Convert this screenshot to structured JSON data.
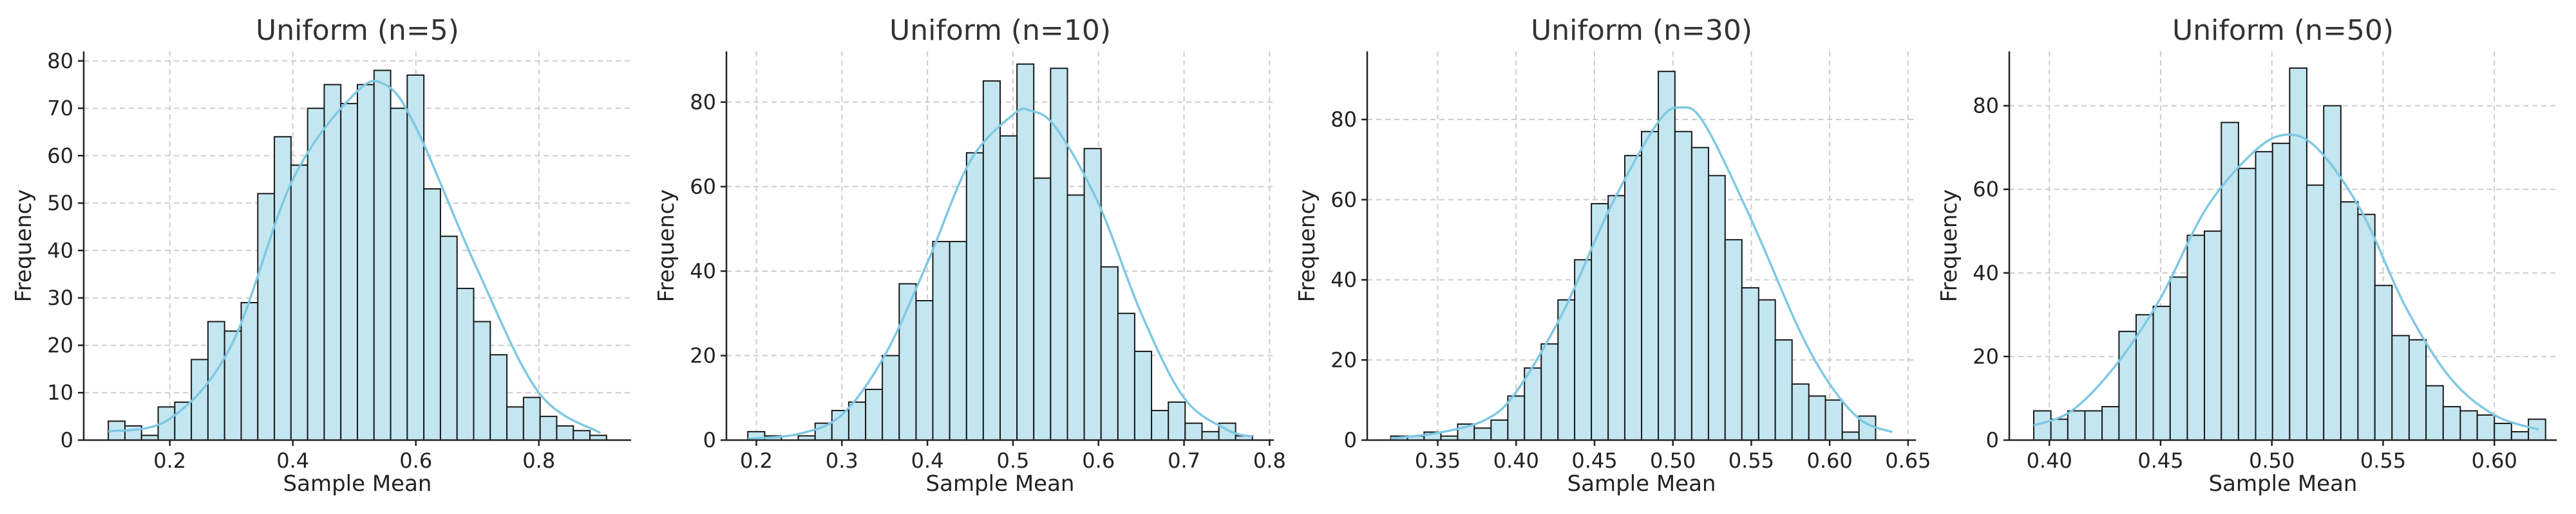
{
  "figure": {
    "bar_fill": "#c3e6f0",
    "bar_edge": "#1a1a1a",
    "kde_color": "#7ec8e3",
    "grid": true
  },
  "chart_data": [
    {
      "type": "bar",
      "title": "Uniform (n=5)",
      "xlabel": "Sample Mean",
      "ylabel": "Frequency",
      "xlim": [
        0.06,
        0.95
      ],
      "ylim": [
        0,
        82
      ],
      "xticks": [
        0.2,
        0.4,
        0.6,
        0.8
      ],
      "xtick_labels": [
        "0.2",
        "0.4",
        "0.6",
        "0.8"
      ],
      "yticks": [
        0,
        10,
        20,
        30,
        40,
        50,
        60,
        70,
        80
      ],
      "ytick_labels": [
        "0",
        "10",
        "20",
        "30",
        "40",
        "50",
        "60",
        "70",
        "80"
      ],
      "bin_edges": [
        0.1,
        0.127,
        0.154,
        0.181,
        0.208,
        0.235,
        0.262,
        0.289,
        0.316,
        0.343,
        0.37,
        0.397,
        0.424,
        0.451,
        0.478,
        0.505,
        0.532,
        0.559,
        0.586,
        0.613,
        0.64,
        0.667,
        0.694,
        0.721,
        0.748,
        0.775,
        0.802,
        0.829,
        0.856,
        0.883,
        0.91
      ],
      "values": [
        4,
        3,
        1,
        7,
        8,
        17,
        25,
        23,
        29,
        52,
        64,
        58,
        70,
        75,
        71,
        75,
        78,
        70,
        77,
        53,
        43,
        32,
        25,
        18,
        7,
        9,
        5,
        3,
        2,
        1
      ],
      "kde": [
        [
          0.1,
          1.8
        ],
        [
          0.2,
          4.5
        ],
        [
          0.3,
          20
        ],
        [
          0.4,
          55
        ],
        [
          0.5,
          73
        ],
        [
          0.55,
          75
        ],
        [
          0.6,
          66
        ],
        [
          0.7,
          36
        ],
        [
          0.8,
          10
        ],
        [
          0.9,
          1.5
        ]
      ]
    },
    {
      "type": "bar",
      "title": "Uniform (n=10)",
      "xlabel": "Sample Mean",
      "ylabel": "Frequency",
      "xlim": [
        0.165,
        0.805
      ],
      "ylim": [
        0,
        92
      ],
      "xticks": [
        0.2,
        0.3,
        0.4,
        0.5,
        0.6,
        0.7,
        0.8
      ],
      "xtick_labels": [
        "0.2",
        "0.3",
        "0.4",
        "0.5",
        "0.6",
        "0.7",
        "0.8"
      ],
      "yticks": [
        0,
        20,
        40,
        60,
        80
      ],
      "ytick_labels": [
        "0",
        "20",
        "40",
        "60",
        "80"
      ],
      "bin_edges": [
        0.19,
        0.2097,
        0.2293,
        0.249,
        0.2687,
        0.2883,
        0.308,
        0.3277,
        0.3473,
        0.367,
        0.3867,
        0.4063,
        0.426,
        0.4457,
        0.4653,
        0.485,
        0.5047,
        0.5243,
        0.544,
        0.5637,
        0.5833,
        0.603,
        0.6227,
        0.6423,
        0.662,
        0.6817,
        0.7013,
        0.721,
        0.7407,
        0.7603,
        0.78
      ],
      "values": [
        2,
        1,
        0,
        1,
        4,
        7,
        9,
        12,
        20,
        37,
        33,
        47,
        47,
        68,
        85,
        72,
        89,
        62,
        88,
        58,
        69,
        41,
        30,
        21,
        7,
        9,
        4,
        2,
        4,
        1
      ],
      "kde": [
        [
          0.19,
          0.3
        ],
        [
          0.25,
          1.5
        ],
        [
          0.3,
          6
        ],
        [
          0.35,
          20
        ],
        [
          0.4,
          42
        ],
        [
          0.45,
          66
        ],
        [
          0.5,
          77
        ],
        [
          0.52,
          78
        ],
        [
          0.55,
          74
        ],
        [
          0.6,
          56
        ],
        [
          0.65,
          30
        ],
        [
          0.7,
          10
        ],
        [
          0.75,
          2.5
        ],
        [
          0.78,
          0.8
        ]
      ]
    },
    {
      "type": "bar",
      "title": "Uniform (n=30)",
      "xlabel": "Sample Mean",
      "ylabel": "Frequency",
      "xlim": [
        0.305,
        0.655
      ],
      "ylim": [
        0,
        97
      ],
      "xticks": [
        0.35,
        0.4,
        0.45,
        0.5,
        0.55,
        0.6,
        0.65
      ],
      "xtick_labels": [
        "0.35",
        "0.40",
        "0.45",
        "0.50",
        "0.55",
        "0.60",
        "0.65"
      ],
      "yticks": [
        0,
        20,
        40,
        60,
        80
      ],
      "ytick_labels": [
        "0",
        "20",
        "40",
        "60",
        "80"
      ],
      "bin_edges": [
        0.32,
        0.3307,
        0.3413,
        0.352,
        0.3627,
        0.3733,
        0.384,
        0.3947,
        0.4053,
        0.416,
        0.4267,
        0.4373,
        0.448,
        0.4587,
        0.4693,
        0.48,
        0.4907,
        0.5013,
        0.512,
        0.5227,
        0.5333,
        0.544,
        0.5547,
        0.5653,
        0.576,
        0.5867,
        0.5973,
        0.608,
        0.6187,
        0.6293,
        0.64
      ],
      "values": [
        1,
        1,
        2,
        1,
        4,
        3,
        5,
        11,
        18,
        24,
        35,
        45,
        59,
        61,
        71,
        77,
        92,
        77,
        73,
        66,
        50,
        38,
        35,
        25,
        14,
        11,
        10,
        2,
        6,
        0
      ],
      "kde": [
        [
          0.32,
          0.4
        ],
        [
          0.35,
          1.8
        ],
        [
          0.38,
          5
        ],
        [
          0.4,
          12
        ],
        [
          0.43,
          32
        ],
        [
          0.46,
          58
        ],
        [
          0.49,
          79
        ],
        [
          0.505,
          83
        ],
        [
          0.52,
          79
        ],
        [
          0.55,
          55
        ],
        [
          0.58,
          28
        ],
        [
          0.6,
          14
        ],
        [
          0.62,
          5
        ],
        [
          0.64,
          2
        ]
      ]
    },
    {
      "type": "bar",
      "title": "Uniform (n=50)",
      "xlabel": "Sample Mean",
      "ylabel": "Frequency",
      "xlim": [
        0.382,
        0.628
      ],
      "ylim": [
        0,
        93
      ],
      "xticks": [
        0.4,
        0.45,
        0.5,
        0.55,
        0.6
      ],
      "xtick_labels": [
        "0.40",
        "0.45",
        "0.50",
        "0.55",
        "0.60"
      ],
      "yticks": [
        0,
        20,
        40,
        60,
        80
      ],
      "ytick_labels": [
        "0",
        "20",
        "40",
        "60",
        "80"
      ],
      "bin_edges": [
        0.393,
        0.4007,
        0.4083,
        0.416,
        0.4237,
        0.4313,
        0.439,
        0.4467,
        0.4543,
        0.462,
        0.4697,
        0.4773,
        0.485,
        0.4927,
        0.5003,
        0.508,
        0.5157,
        0.5233,
        0.531,
        0.5387,
        0.5463,
        0.554,
        0.5617,
        0.5693,
        0.577,
        0.5847,
        0.5923,
        0.6,
        0.6077,
        0.6153,
        0.623
      ],
      "values": [
        7,
        5,
        7,
        7,
        8,
        26,
        30,
        32,
        39,
        49,
        50,
        76,
        65,
        69,
        71,
        89,
        61,
        80,
        57,
        54,
        37,
        25,
        24,
        13,
        8,
        7,
        6,
        4,
        2,
        5
      ],
      "kde": [
        [
          0.393,
          3.5
        ],
        [
          0.41,
          7
        ],
        [
          0.43,
          18
        ],
        [
          0.45,
          34
        ],
        [
          0.47,
          55
        ],
        [
          0.49,
          68
        ],
        [
          0.505,
          73
        ],
        [
          0.52,
          70
        ],
        [
          0.54,
          55
        ],
        [
          0.56,
          32
        ],
        [
          0.58,
          15
        ],
        [
          0.6,
          6
        ],
        [
          0.62,
          2.5
        ]
      ]
    }
  ]
}
